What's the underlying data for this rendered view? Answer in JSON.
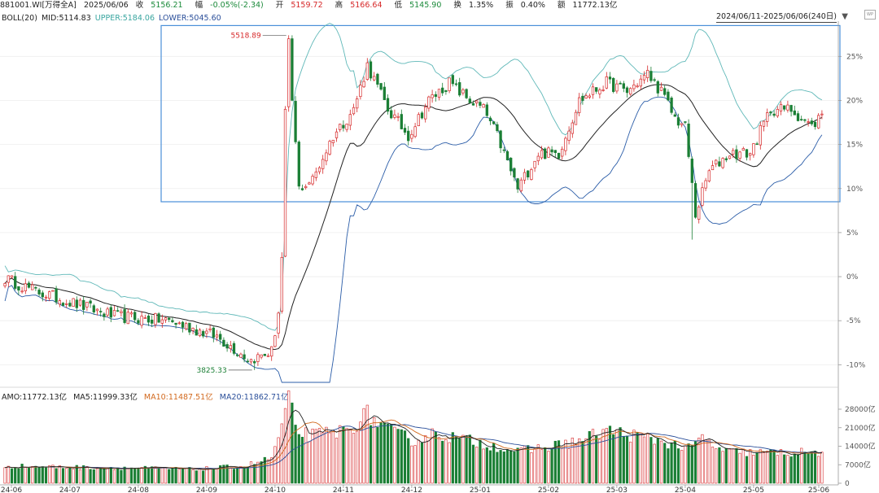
{
  "header": {
    "code": "881001.WI[万得全A]",
    "date": "2025/06/06",
    "close_label": "收",
    "close": "5156.21",
    "change_label": "幅",
    "change": "-0.05%(-2.34)",
    "open_label": "开",
    "open": "5159.72",
    "high_label": "高",
    "high": "5166.64",
    "low_label": "低",
    "low": "5145.90",
    "turnover_label": "换",
    "turnover": "1.35%",
    "amplitude_label": "振",
    "amplitude": "0.40%",
    "amount_label": "额",
    "amount": "11772.13亿",
    "range": "2024/06/11-2025/06/06(240日)",
    "logo": "WP"
  },
  "boll": {
    "name": "BOLL(20)",
    "mid": "MID:5114.83",
    "upper": "UPPER:5184.06",
    "lower": "LOWER:5045.60"
  },
  "volume_header": {
    "amo": "AMO:11772.13亿",
    "ma5": "MA5:11999.33亿",
    "ma10": "MA10:11487.51亿",
    "ma20": "MA20:11862.71亿"
  },
  "annotations": {
    "high": "5518.89",
    "low": "3825.33"
  },
  "colors": {
    "up": "#d62728",
    "down": "#1b7f35",
    "mid": "#222222",
    "upper": "#5fb8b8",
    "lower": "#2b5da8",
    "box": "#4a90d9",
    "ma5": "#222222",
    "ma10": "#d2691e",
    "ma20": "#2b4f9a"
  },
  "chart_data": [
    {
      "type": "candlestick",
      "y_axis": {
        "unit": "%",
        "ticks": [
          "25%",
          "20%",
          "15%",
          "10%",
          "5%",
          "0%",
          "-5%",
          "-10%"
        ],
        "range_pct": [
          -12,
          29
        ]
      },
      "x_axis": {
        "ticks": [
          "24-06",
          "24-07",
          "24-08",
          "24-09",
          "24-10",
          "24-11",
          "24-12",
          "25-01",
          "25-02",
          "25-03",
          "25-04",
          "25-05",
          "25-06"
        ]
      },
      "highlight_box_pct": [
        8.5,
        28.5
      ],
      "key_points_pct": [
        {
          "x": 0,
          "y": -0.2
        },
        {
          "x": 8,
          "y": -1.5
        },
        {
          "x": 20,
          "y": -3
        },
        {
          "x": 32,
          "y": -4.5
        },
        {
          "x": 48,
          "y": -5
        },
        {
          "x": 62,
          "y": -6.8
        },
        {
          "x": 72,
          "y": -9.5
        },
        {
          "x": 78,
          "y": -8.5
        },
        {
          "x": 80,
          "y": -4
        },
        {
          "x": 82,
          "y": 8
        },
        {
          "x": 84,
          "y": 20
        },
        {
          "x": 86,
          "y": 10
        },
        {
          "x": 90,
          "y": 11
        },
        {
          "x": 96,
          "y": 16
        },
        {
          "x": 102,
          "y": 19
        },
        {
          "x": 106,
          "y": 24
        },
        {
          "x": 112,
          "y": 19
        },
        {
          "x": 118,
          "y": 16
        },
        {
          "x": 124,
          "y": 20
        },
        {
          "x": 130,
          "y": 22
        },
        {
          "x": 136,
          "y": 20
        },
        {
          "x": 140,
          "y": 19
        },
        {
          "x": 144,
          "y": 16
        },
        {
          "x": 150,
          "y": 10
        },
        {
          "x": 156,
          "y": 14
        },
        {
          "x": 162,
          "y": 14
        },
        {
          "x": 168,
          "y": 20
        },
        {
          "x": 176,
          "y": 22
        },
        {
          "x": 182,
          "y": 21
        },
        {
          "x": 188,
          "y": 23
        },
        {
          "x": 192,
          "y": 21
        },
        {
          "x": 196,
          "y": 18
        },
        {
          "x": 199,
          "y": 17
        },
        {
          "x": 202,
          "y": 7
        },
        {
          "x": 206,
          "y": 12
        },
        {
          "x": 212,
          "y": 14
        },
        {
          "x": 218,
          "y": 14
        },
        {
          "x": 224,
          "y": 19
        },
        {
          "x": 230,
          "y": 19
        },
        {
          "x": 236,
          "y": 17
        },
        {
          "x": 239,
          "y": 18.5
        }
      ],
      "bollinger": {
        "period": 20
      },
      "annotations": [
        {
          "label": "5518.89",
          "index": 83,
          "pct": 27.4
        },
        {
          "label": "3825.33",
          "index": 73,
          "pct": -10.6
        }
      ]
    },
    {
      "type": "bar",
      "name": "AMO",
      "unit": "亿",
      "y_axis": {
        "ticks": [
          "28000亿",
          "21000亿",
          "14000亿",
          "7000亿",
          "0"
        ],
        "max": 32000
      },
      "key_points": [
        {
          "x": 0,
          "y": 6500
        },
        {
          "x": 20,
          "y": 6000
        },
        {
          "x": 40,
          "y": 5700
        },
        {
          "x": 55,
          "y": 5200
        },
        {
          "x": 70,
          "y": 6500
        },
        {
          "x": 78,
          "y": 9500
        },
        {
          "x": 82,
          "y": 25000
        },
        {
          "x": 83,
          "y": 33000
        },
        {
          "x": 85,
          "y": 20000
        },
        {
          "x": 90,
          "y": 18000
        },
        {
          "x": 100,
          "y": 20000
        },
        {
          "x": 106,
          "y": 26000
        },
        {
          "x": 112,
          "y": 20000
        },
        {
          "x": 120,
          "y": 16000
        },
        {
          "x": 126,
          "y": 19000
        },
        {
          "x": 132,
          "y": 17000
        },
        {
          "x": 140,
          "y": 15000
        },
        {
          "x": 150,
          "y": 12000
        },
        {
          "x": 160,
          "y": 14000
        },
        {
          "x": 168,
          "y": 16000
        },
        {
          "x": 176,
          "y": 20000
        },
        {
          "x": 184,
          "y": 18000
        },
        {
          "x": 192,
          "y": 16000
        },
        {
          "x": 200,
          "y": 13000
        },
        {
          "x": 204,
          "y": 17000
        },
        {
          "x": 210,
          "y": 12000
        },
        {
          "x": 220,
          "y": 11500
        },
        {
          "x": 230,
          "y": 11500
        },
        {
          "x": 239,
          "y": 11772
        }
      ]
    }
  ]
}
